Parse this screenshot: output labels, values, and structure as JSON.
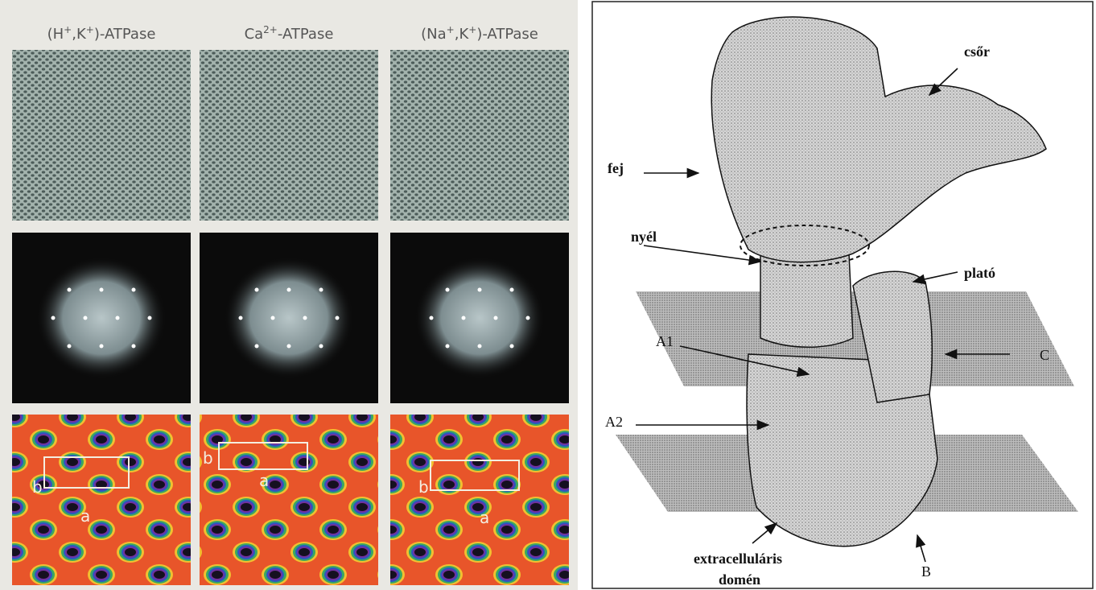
{
  "left_panel": {
    "columns": [
      {
        "title": [
          "(H",
          "+",
          ",K",
          "+",
          ")-ATPase"
        ],
        "b": "b",
        "a": "a"
      },
      {
        "title": [
          "Ca",
          "2+",
          "-ATPase"
        ],
        "b": "b",
        "a": "a"
      },
      {
        "title": [
          "(Na",
          "+",
          ",K",
          "+",
          ")-ATPase"
        ],
        "b": "b",
        "a": "a"
      }
    ]
  },
  "right_panel": {
    "labels": {
      "csor": "csőr",
      "fej": "fej",
      "nyel": "nyél",
      "plato": "plató",
      "a1": "A1",
      "c": "C",
      "a2": "A2",
      "extracellularis": "extracelluláris",
      "domen": "domén",
      "b": "B"
    }
  }
}
